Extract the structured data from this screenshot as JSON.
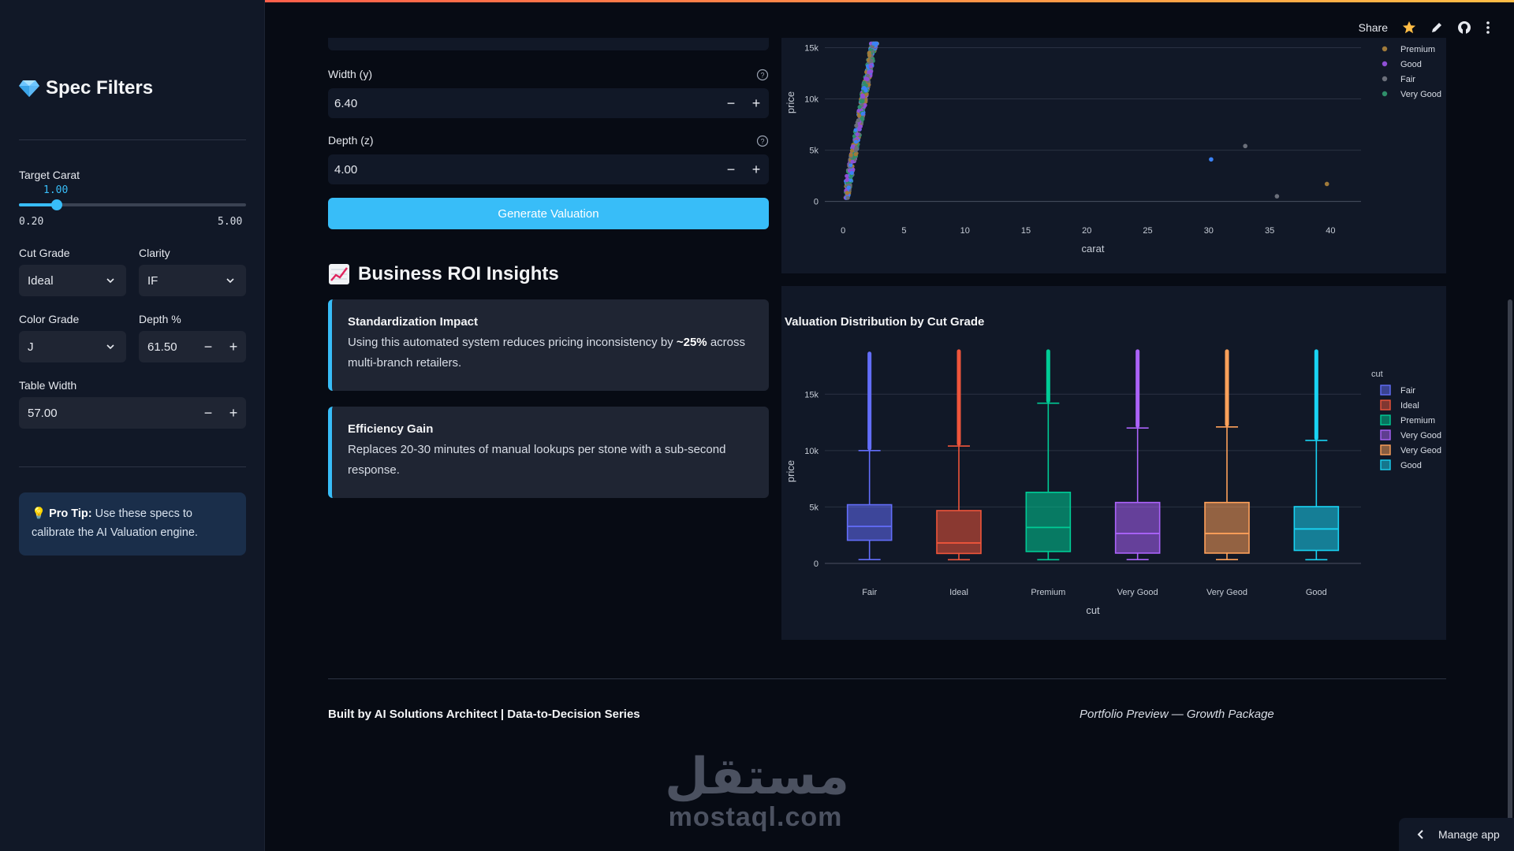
{
  "topbar": {
    "share_label": "Share"
  },
  "sidebar": {
    "title": "Spec Filters",
    "carat": {
      "label": "Target Carat",
      "value": "1.00",
      "value_num": 1.0,
      "min": "0.20",
      "max": "5.00",
      "min_num": 0.2,
      "max_num": 5.0
    },
    "cut": {
      "label": "Cut Grade",
      "value": "Ideal"
    },
    "clarity": {
      "label": "Clarity",
      "value": "IF"
    },
    "color": {
      "label": "Color Grade",
      "value": "J"
    },
    "depth": {
      "label": "Depth %",
      "value": "61.50"
    },
    "table": {
      "label": "Table Width",
      "value": "57.00"
    },
    "tip": {
      "bold": "Pro Tip:",
      "text": " Use these specs to calibrate the AI Valuation engine."
    }
  },
  "form": {
    "width": {
      "label": "Width (y)",
      "value": "6.40"
    },
    "depth": {
      "label": "Depth (z)",
      "value": "4.00"
    },
    "generate_label": "Generate Valuation"
  },
  "insights": {
    "title": "Business ROI Insights",
    "cards": [
      {
        "title": "Standardization Impact",
        "pre": "Using this automated system reduces pricing inconsistency by ",
        "bold": "~25%",
        "post": " across multi-branch retailers."
      },
      {
        "title": "Efficiency Gain",
        "text": "Replaces 20-30 minutes of manual lookups per stone with a sub-second response."
      }
    ]
  },
  "chart_data": [
    {
      "type": "scatter",
      "xlabel": "carat",
      "ylabel": "price",
      "x_ticks": [
        "0",
        "5",
        "10",
        "15",
        "20",
        "25",
        "30",
        "35",
        "40"
      ],
      "y_ticks": [
        "0",
        "5k",
        "10k",
        "15k"
      ],
      "xlim": [
        -1.5,
        42.5
      ],
      "ylim": [
        -800,
        15500
      ],
      "legend": [
        {
          "name": "Premium",
          "color": "#a07a3a"
        },
        {
          "name": "Good",
          "color": "#8f4fd6"
        },
        {
          "name": "Fair",
          "color": "#6b6f7a"
        },
        {
          "name": "Very Good",
          "color": "#2f8f6a"
        }
      ],
      "outliers": [
        {
          "x": 30.2,
          "y": 4100,
          "color": "#3b82f6"
        },
        {
          "x": 33.0,
          "y": 5400,
          "color": "#6b6f7a"
        },
        {
          "x": 35.6,
          "y": 500,
          "color": "#6b6f7a"
        },
        {
          "x": 39.7,
          "y": 1700,
          "color": "#a07a3a"
        }
      ]
    },
    {
      "type": "box",
      "title": "Valuation Distribution by Cut Grade",
      "xlabel": "cut",
      "ylabel": "price",
      "legend_title": "cut",
      "y_ticks": [
        "0",
        "5k",
        "10k",
        "15k"
      ],
      "ylim": [
        -700,
        19000
      ],
      "categories": [
        "Fair",
        "Ideal",
        "Premium",
        "Very Good",
        "Very Geod",
        "Good"
      ],
      "legend": [
        "Fair",
        "Ideal",
        "Premium",
        "Very Good",
        "Very Geod",
        "Good"
      ],
      "series": [
        {
          "name": "Fair",
          "color": "#636efa",
          "min": 337,
          "q1": 2050,
          "median": 3280,
          "q3": 5200,
          "upper_fence": 10000,
          "max": 18600
        },
        {
          "name": "Ideal",
          "color": "#ef553b",
          "min": 326,
          "q1": 880,
          "median": 1810,
          "q3": 4680,
          "upper_fence": 10400,
          "max": 18800
        },
        {
          "name": "Premium",
          "color": "#00cc96",
          "min": 326,
          "q1": 1050,
          "median": 3185,
          "q3": 6300,
          "upper_fence": 14200,
          "max": 18800
        },
        {
          "name": "Very Good",
          "color": "#ab63fa",
          "min": 336,
          "q1": 910,
          "median": 2650,
          "q3": 5400,
          "upper_fence": 12000,
          "max": 18800
        },
        {
          "name": "Very Geod",
          "color": "#ffa15a",
          "min": 336,
          "q1": 910,
          "median": 2650,
          "q3": 5400,
          "upper_fence": 12100,
          "max": 18800
        },
        {
          "name": "Good",
          "color": "#19d3f3",
          "min": 327,
          "q1": 1150,
          "median": 3050,
          "q3": 5030,
          "upper_fence": 10900,
          "max": 18800
        }
      ]
    }
  ],
  "footer": {
    "left": "Built by AI Solutions Architect | Data-to-Decision Series",
    "right": "Portfolio Preview — Growth Package"
  },
  "watermark": {
    "arabic": "مستقل",
    "latin": "mostaql.com"
  },
  "manage_label": "Manage app"
}
